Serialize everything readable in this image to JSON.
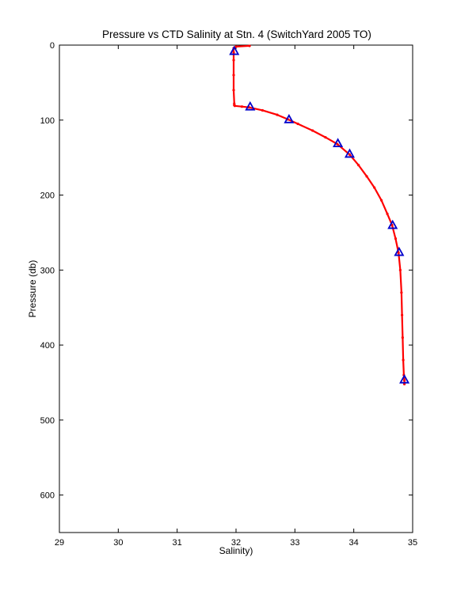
{
  "chart_data": {
    "type": "line",
    "title": "Pressure vs CTD Salinity at Stn. 4 (SwitchYard 2005 TO)",
    "xlabel": "Salinity)",
    "ylabel": "Pressure (db)",
    "xlim": [
      29,
      35
    ],
    "ylim": [
      650,
      0
    ],
    "y_reversed": true,
    "grid": false,
    "xticks": [
      29,
      30,
      31,
      32,
      33,
      34,
      35
    ],
    "yticks": [
      0,
      100,
      200,
      300,
      400,
      500,
      600
    ],
    "series": [
      {
        "kind": "ctd-profile",
        "color": "#ff0000",
        "style": "line-with-dots",
        "x": [
          32.23,
          32.0,
          31.96,
          31.96,
          31.96,
          31.96,
          31.96,
          31.97,
          31.97,
          31.98,
          32.1,
          32.22,
          32.45,
          32.7,
          32.88,
          33.05,
          33.3,
          33.52,
          33.72,
          33.93,
          34.08,
          34.22,
          34.35,
          34.47,
          34.57,
          34.65,
          34.71,
          34.76,
          34.79,
          34.81,
          34.82,
          34.83,
          34.84,
          34.85,
          34.86,
          34.86
        ],
        "y": [
          1,
          2,
          4,
          10,
          20,
          40,
          60,
          78,
          80,
          81,
          82,
          83,
          87,
          93,
          99,
          105,
          114,
          123,
          132,
          146,
          160,
          175,
          190,
          207,
          225,
          240,
          258,
          277,
          300,
          330,
          360,
          390,
          420,
          440,
          447,
          452
        ]
      },
      {
        "kind": "bottle-samples",
        "color": "#0000cc",
        "style": "triangle-markers",
        "x": [
          31.97,
          32.24,
          32.9,
          33.73,
          33.93,
          34.66,
          34.77,
          34.86
        ],
        "y": [
          8,
          82,
          99,
          131,
          145,
          240,
          276,
          446
        ]
      }
    ]
  }
}
